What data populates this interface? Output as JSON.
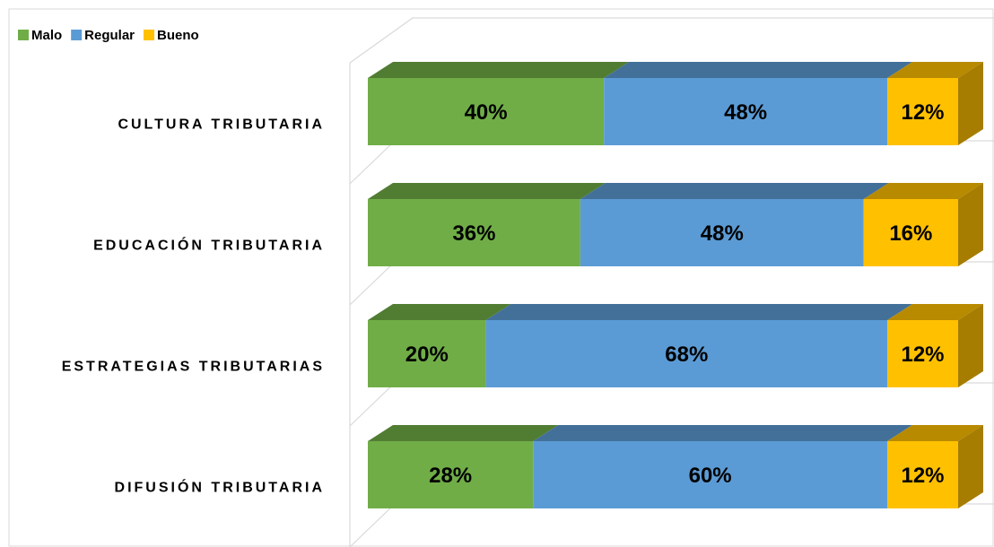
{
  "chart_data": {
    "type": "bar3d_stacked_horizontal",
    "categories": [
      "CULTURA TRIBUTARIA",
      "EDUCACIÓN TRIBUTARIA",
      "ESTRATEGIAS TRIBUTARIAS",
      "DIFUSIÓN TRIBUTARIA"
    ],
    "series": [
      {
        "name": "Malo",
        "color": "#70ad47",
        "values": [
          40,
          36,
          20,
          28
        ],
        "value_labels": [
          "40%",
          "36%",
          "20%",
          "28%"
        ]
      },
      {
        "name": "Regular",
        "color": "#5b9bd5",
        "values": [
          48,
          48,
          68,
          60
        ],
        "value_labels": [
          "48%",
          "48%",
          "68%",
          "60%"
        ]
      },
      {
        "name": "Bueno",
        "color": "#ffc000",
        "values": [
          12,
          16,
          12,
          12
        ],
        "value_labels": [
          "12%",
          "16%",
          "12%",
          "12%"
        ]
      }
    ],
    "xlim": [
      0,
      100
    ],
    "legend": "top-left"
  }
}
